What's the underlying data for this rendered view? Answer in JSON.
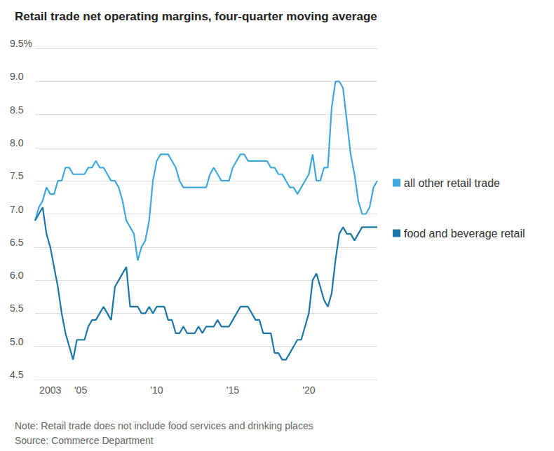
{
  "chart_data": {
    "type": "line",
    "title": "Retail trade net operating margins, four-quarter moving average",
    "note": "Note: Retail trade does not include food services and drinking places",
    "source": "Source: Commerce Department",
    "categories": [
      null,
      null,
      null,
      null,
      "2003",
      null,
      null,
      null,
      null,
      null,
      null,
      null,
      "'05",
      null,
      null,
      null,
      null,
      null,
      null,
      null,
      null,
      null,
      null,
      null,
      null,
      null,
      null,
      null,
      null,
      null,
      null,
      null,
      "'10",
      null,
      null,
      null,
      null,
      null,
      null,
      null,
      null,
      null,
      null,
      null,
      null,
      null,
      null,
      null,
      null,
      null,
      null,
      null,
      "'15",
      null,
      null,
      null,
      null,
      null,
      null,
      null,
      null,
      null,
      null,
      null,
      null,
      null,
      null,
      null,
      null,
      null,
      null,
      null,
      "'20",
      null,
      null,
      null,
      null,
      null,
      null,
      null,
      null,
      null,
      null,
      null,
      null,
      null,
      null,
      null,
      null,
      null,
      null
    ],
    "series": [
      {
        "name": "all other retail trade",
        "color": "#3ea7dd",
        "values": [
          6.9,
          7.1,
          7.2,
          7.4,
          7.3,
          7.3,
          7.5,
          7.5,
          7.7,
          7.7,
          7.6,
          7.6,
          7.6,
          7.6,
          7.7,
          7.7,
          7.8,
          7.7,
          7.7,
          7.6,
          7.5,
          7.5,
          7.4,
          7.2,
          6.9,
          6.8,
          6.7,
          6.3,
          6.5,
          6.6,
          6.9,
          7.5,
          7.8,
          7.9,
          7.9,
          7.9,
          7.8,
          7.7,
          7.5,
          7.4,
          7.4,
          7.4,
          7.4,
          7.4,
          7.4,
          7.4,
          7.6,
          7.7,
          7.6,
          7.5,
          7.5,
          7.5,
          7.7,
          7.8,
          7.9,
          7.9,
          7.8,
          7.8,
          7.8,
          7.8,
          7.8,
          7.8,
          7.7,
          7.7,
          7.6,
          7.6,
          7.5,
          7.4,
          7.4,
          7.3,
          7.4,
          7.5,
          7.6,
          7.9,
          7.5,
          7.5,
          7.7,
          7.7,
          8.6,
          9.0,
          9.0,
          8.9,
          8.4,
          7.9,
          7.6,
          7.2,
          7.0,
          7.0,
          7.1,
          7.4,
          7.5
        ]
      },
      {
        "name": "food and beverage retail",
        "color": "#1b76a8",
        "values": [
          6.9,
          7.0,
          7.1,
          6.7,
          6.5,
          6.2,
          5.9,
          5.5,
          5.2,
          5.0,
          4.8,
          5.1,
          5.1,
          5.1,
          5.3,
          5.4,
          5.4,
          5.5,
          5.6,
          5.5,
          5.4,
          5.9,
          6.0,
          6.1,
          6.2,
          5.6,
          5.6,
          5.6,
          5.5,
          5.5,
          5.6,
          5.5,
          5.6,
          5.6,
          5.6,
          5.4,
          5.4,
          5.2,
          5.2,
          5.3,
          5.2,
          5.2,
          5.2,
          5.3,
          5.2,
          5.3,
          5.3,
          5.3,
          5.4,
          5.3,
          5.3,
          5.3,
          5.4,
          5.5,
          5.6,
          5.6,
          5.6,
          5.5,
          5.4,
          5.4,
          5.2,
          5.2,
          5.2,
          4.9,
          4.9,
          4.8,
          4.8,
          4.9,
          5.0,
          5.1,
          5.1,
          5.3,
          5.5,
          6.0,
          6.1,
          5.9,
          5.7,
          5.6,
          5.8,
          6.3,
          6.7,
          6.8,
          6.7,
          6.7,
          6.6,
          6.7,
          6.8,
          6.8,
          6.8,
          6.8,
          6.8
        ]
      }
    ],
    "ylim": [
      4.5,
      9.5
    ],
    "yticks": [
      4.5,
      {
        "value": 5.0,
        "label": "5.0"
      },
      5.5,
      {
        "value": 6.0,
        "label": "6.0"
      },
      6.5,
      {
        "value": 7.0,
        "label": "7.0"
      },
      7.5,
      {
        "value": 8.0,
        "label": "8.0"
      },
      8.5,
      {
        "value": 9.0,
        "label": "9.0"
      },
      {
        "value": 9.5,
        "label": "9.5%"
      }
    ],
    "grid": true,
    "legend": "right"
  }
}
